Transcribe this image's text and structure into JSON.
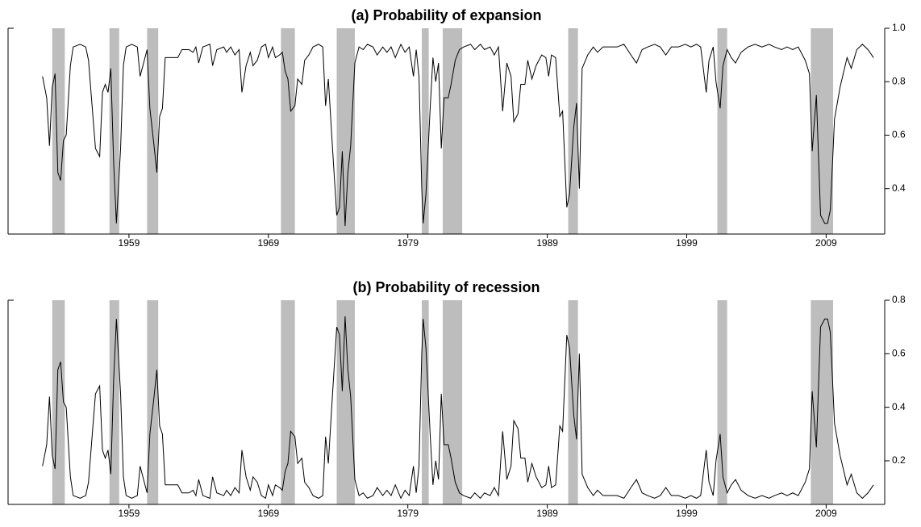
{
  "chart_data": [
    {
      "type": "line",
      "title": "(a) Probability of expansion",
      "xlim": [
        1950.33,
        2013.2
      ],
      "xticks": [
        1959,
        1969,
        1979,
        1989,
        1999,
        2009
      ],
      "ylim": [
        0.23,
        1.0
      ],
      "yticks": [
        0.4,
        0.6,
        0.8,
        {
          "value": 1.0,
          "label": "1.0"
        }
      ],
      "shaded_spans": [
        [
          1953.5,
          1954.4
        ],
        [
          1957.6,
          1958.3
        ],
        [
          1960.3,
          1961.1
        ],
        [
          1969.9,
          1970.9
        ],
        [
          1973.9,
          1975.2
        ],
        [
          1980.0,
          1980.5
        ],
        [
          1981.5,
          1982.9
        ],
        [
          1990.5,
          1991.2
        ],
        [
          2001.2,
          2001.9
        ],
        [
          2007.9,
          2009.5
        ]
      ],
      "shade_color": "#bdbdbd",
      "x": [
        1952.8,
        1953.1,
        1953.3,
        1953.5,
        1953.7,
        1953.9,
        1954.1,
        1954.3,
        1954.5,
        1954.8,
        1955.0,
        1955.5,
        1955.9,
        1956.1,
        1956.4,
        1956.6,
        1956.9,
        1957.1,
        1957.3,
        1957.5,
        1957.7,
        1957.9,
        1958.1,
        1958.4,
        1958.6,
        1958.8,
        1959.2,
        1959.6,
        1959.8,
        1960.0,
        1960.3,
        1960.5,
        1960.8,
        1961.0,
        1961.2,
        1961.4,
        1961.6,
        1962.5,
        1962.8,
        1963.3,
        1963.6,
        1963.8,
        1964.0,
        1964.3,
        1964.8,
        1965.0,
        1965.3,
        1965.8,
        1966.0,
        1966.3,
        1966.6,
        1966.9,
        1967.1,
        1967.4,
        1967.7,
        1967.9,
        1968.2,
        1968.5,
        1968.8,
        1969.0,
        1969.3,
        1969.5,
        1969.8,
        1970.0,
        1970.2,
        1970.4,
        1970.6,
        1970.9,
        1971.1,
        1971.4,
        1971.6,
        1971.9,
        1972.2,
        1972.6,
        1972.9,
        1973.1,
        1973.3,
        1973.6,
        1973.9,
        1974.1,
        1974.3,
        1974.5,
        1974.7,
        1974.9,
        1975.2,
        1975.5,
        1975.8,
        1976.1,
        1976.5,
        1976.8,
        1977.2,
        1977.5,
        1977.8,
        1978.1,
        1978.5,
        1978.8,
        1979.1,
        1979.4,
        1979.6,
        1979.8,
        1980.0,
        1980.1,
        1980.3,
        1980.6,
        1980.8,
        1981.0,
        1981.2,
        1981.4,
        1981.6,
        1981.9,
        1982.1,
        1982.4,
        1982.7,
        1983.0,
        1983.5,
        1983.8,
        1984.2,
        1984.5,
        1984.9,
        1985.2,
        1985.5,
        1985.8,
        1986.1,
        1986.4,
        1986.6,
        1986.9,
        1987.1,
        1987.4,
        1987.6,
        1987.9,
        1988.2,
        1988.6,
        1988.9,
        1989.1,
        1989.3,
        1989.6,
        1989.9,
        1990.1,
        1990.4,
        1990.6,
        1990.9,
        1991.1,
        1991.3,
        1991.5,
        1991.9,
        1992.3,
        1992.6,
        1993.0,
        1993.5,
        1994.0,
        1994.5,
        1995.0,
        1995.4,
        1995.8,
        1996.2,
        1996.7,
        1997.1,
        1997.5,
        1997.9,
        1998.4,
        1998.9,
        1999.3,
        1999.7,
        2000.0,
        2000.4,
        2000.6,
        2000.9,
        2001.1,
        2001.4,
        2001.6,
        2001.9,
        2002.2,
        2002.5,
        2002.9,
        2003.4,
        2003.9,
        2004.4,
        2004.9,
        2005.3,
        2005.8,
        2006.2,
        2006.6,
        2007.0,
        2007.5,
        2007.8,
        2008.0,
        2008.3,
        2008.6,
        2008.9,
        2009.1,
        2009.3,
        2009.6,
        2010.0,
        2010.5,
        2010.8,
        2011.2,
        2011.6,
        2012.0,
        2012.4
      ],
      "series": [
        {
          "color": "#000000",
          "values": [
            0.82,
            0.74,
            0.56,
            0.78,
            0.83,
            0.46,
            0.43,
            0.58,
            0.6,
            0.86,
            0.93,
            0.94,
            0.93,
            0.88,
            0.68,
            0.55,
            0.52,
            0.76,
            0.79,
            0.76,
            0.85,
            0.5,
            0.27,
            0.55,
            0.86,
            0.93,
            0.94,
            0.93,
            0.82,
            0.86,
            0.92,
            0.7,
            0.56,
            0.46,
            0.67,
            0.7,
            0.89,
            0.89,
            0.92,
            0.92,
            0.91,
            0.93,
            0.87,
            0.93,
            0.94,
            0.86,
            0.92,
            0.93,
            0.91,
            0.93,
            0.9,
            0.92,
            0.76,
            0.86,
            0.91,
            0.86,
            0.88,
            0.93,
            0.94,
            0.89,
            0.93,
            0.89,
            0.9,
            0.91,
            0.84,
            0.81,
            0.69,
            0.71,
            0.81,
            0.79,
            0.88,
            0.9,
            0.93,
            0.94,
            0.93,
            0.71,
            0.81,
            0.55,
            0.3,
            0.33,
            0.54,
            0.26,
            0.46,
            0.56,
            0.87,
            0.93,
            0.92,
            0.94,
            0.93,
            0.9,
            0.93,
            0.91,
            0.93,
            0.89,
            0.94,
            0.91,
            0.93,
            0.82,
            0.92,
            0.82,
            0.4,
            0.27,
            0.38,
            0.7,
            0.89,
            0.8,
            0.87,
            0.55,
            0.74,
            0.74,
            0.79,
            0.88,
            0.92,
            0.93,
            0.94,
            0.92,
            0.94,
            0.92,
            0.93,
            0.9,
            0.93,
            0.69,
            0.87,
            0.82,
            0.65,
            0.68,
            0.79,
            0.79,
            0.88,
            0.81,
            0.86,
            0.9,
            0.89,
            0.82,
            0.9,
            0.89,
            0.67,
            0.69,
            0.33,
            0.38,
            0.63,
            0.72,
            0.4,
            0.85,
            0.9,
            0.93,
            0.91,
            0.93,
            0.93,
            0.93,
            0.94,
            0.9,
            0.87,
            0.92,
            0.93,
            0.94,
            0.93,
            0.9,
            0.93,
            0.93,
            0.94,
            0.93,
            0.94,
            0.93,
            0.76,
            0.88,
            0.93,
            0.8,
            0.7,
            0.86,
            0.92,
            0.89,
            0.87,
            0.91,
            0.93,
            0.94,
            0.93,
            0.94,
            0.93,
            0.92,
            0.93,
            0.92,
            0.93,
            0.88,
            0.83,
            0.54,
            0.75,
            0.3,
            0.27,
            0.27,
            0.32,
            0.66,
            0.78,
            0.89,
            0.85,
            0.92,
            0.94,
            0.92,
            0.89
          ]
        }
      ]
    },
    {
      "type": "line",
      "title": "(b) Probability of recession",
      "xlim": [
        1950.33,
        2013.2
      ],
      "xticks": [
        1959,
        1969,
        1979,
        1989,
        1999,
        2009
      ],
      "ylim": [
        0.037,
        0.8
      ],
      "yticks": [
        0.2,
        0.4,
        0.6,
        0.8
      ],
      "shaded_spans": [
        [
          1953.5,
          1954.4
        ],
        [
          1957.6,
          1958.3
        ],
        [
          1960.3,
          1961.1
        ],
        [
          1969.9,
          1970.9
        ],
        [
          1973.9,
          1975.2
        ],
        [
          1980.0,
          1980.5
        ],
        [
          1981.5,
          1982.9
        ],
        [
          1990.5,
          1991.2
        ],
        [
          2001.2,
          2001.9
        ],
        [
          2007.9,
          2009.5
        ]
      ],
      "shade_color": "#bdbdbd",
      "x": [
        1952.8,
        1953.1,
        1953.3,
        1953.5,
        1953.7,
        1953.9,
        1954.1,
        1954.3,
        1954.5,
        1954.8,
        1955.0,
        1955.5,
        1955.9,
        1956.1,
        1956.4,
        1956.6,
        1956.9,
        1957.1,
        1957.3,
        1957.5,
        1957.7,
        1957.9,
        1958.1,
        1958.4,
        1958.6,
        1958.8,
        1959.2,
        1959.6,
        1959.8,
        1960.0,
        1960.3,
        1960.5,
        1960.8,
        1961.0,
        1961.2,
        1961.4,
        1961.6,
        1962.5,
        1962.8,
        1963.3,
        1963.6,
        1963.8,
        1964.0,
        1964.3,
        1964.8,
        1965.0,
        1965.3,
        1965.8,
        1966.0,
        1966.3,
        1966.6,
        1966.9,
        1967.1,
        1967.4,
        1967.7,
        1967.9,
        1968.2,
        1968.5,
        1968.8,
        1969.0,
        1969.3,
        1969.5,
        1969.8,
        1970.0,
        1970.2,
        1970.4,
        1970.6,
        1970.9,
        1971.1,
        1971.4,
        1971.6,
        1971.9,
        1972.2,
        1972.6,
        1972.9,
        1973.1,
        1973.3,
        1973.6,
        1973.9,
        1974.1,
        1974.3,
        1974.5,
        1974.7,
        1974.9,
        1975.2,
        1975.5,
        1975.8,
        1976.1,
        1976.5,
        1976.8,
        1977.2,
        1977.5,
        1977.8,
        1978.1,
        1978.5,
        1978.8,
        1979.1,
        1979.4,
        1979.6,
        1979.8,
        1980.0,
        1980.1,
        1980.3,
        1980.6,
        1980.8,
        1981.0,
        1981.2,
        1981.4,
        1981.6,
        1981.9,
        1982.1,
        1982.4,
        1982.7,
        1983.0,
        1983.5,
        1983.8,
        1984.2,
        1984.5,
        1984.9,
        1985.2,
        1985.5,
        1985.8,
        1986.1,
        1986.4,
        1986.6,
        1986.9,
        1987.1,
        1987.4,
        1987.6,
        1987.9,
        1988.2,
        1988.6,
        1988.9,
        1989.1,
        1989.3,
        1989.6,
        1989.9,
        1990.1,
        1990.4,
        1990.6,
        1990.9,
        1991.1,
        1991.3,
        1991.5,
        1991.9,
        1992.3,
        1992.6,
        1993.0,
        1993.5,
        1994.0,
        1994.5,
        1995.0,
        1995.4,
        1995.8,
        1996.2,
        1996.7,
        1997.1,
        1997.5,
        1997.9,
        1998.4,
        1998.9,
        1999.3,
        1999.7,
        2000.0,
        2000.4,
        2000.6,
        2000.9,
        2001.1,
        2001.4,
        2001.6,
        2001.9,
        2002.2,
        2002.5,
        2002.9,
        2003.4,
        2003.9,
        2004.4,
        2004.9,
        2005.3,
        2005.8,
        2006.2,
        2006.6,
        2007.0,
        2007.5,
        2007.8,
        2008.0,
        2008.3,
        2008.6,
        2008.9,
        2009.1,
        2009.3,
        2009.6,
        2010.0,
        2010.5,
        2010.8,
        2011.2,
        2011.6,
        2012.0,
        2012.4
      ],
      "series": [
        {
          "color": "#000000",
          "values": [
            0.18,
            0.26,
            0.44,
            0.22,
            0.17,
            0.54,
            0.57,
            0.42,
            0.4,
            0.14,
            0.07,
            0.06,
            0.07,
            0.12,
            0.32,
            0.45,
            0.48,
            0.24,
            0.21,
            0.24,
            0.15,
            0.5,
            0.73,
            0.45,
            0.14,
            0.07,
            0.06,
            0.07,
            0.18,
            0.14,
            0.08,
            0.3,
            0.44,
            0.54,
            0.33,
            0.3,
            0.11,
            0.11,
            0.08,
            0.08,
            0.09,
            0.07,
            0.13,
            0.07,
            0.06,
            0.14,
            0.08,
            0.07,
            0.09,
            0.07,
            0.1,
            0.08,
            0.24,
            0.14,
            0.09,
            0.14,
            0.12,
            0.07,
            0.06,
            0.11,
            0.07,
            0.11,
            0.1,
            0.09,
            0.16,
            0.19,
            0.31,
            0.29,
            0.19,
            0.21,
            0.12,
            0.1,
            0.07,
            0.06,
            0.07,
            0.29,
            0.19,
            0.45,
            0.7,
            0.67,
            0.46,
            0.74,
            0.54,
            0.44,
            0.13,
            0.07,
            0.08,
            0.06,
            0.07,
            0.1,
            0.07,
            0.09,
            0.07,
            0.11,
            0.06,
            0.09,
            0.07,
            0.18,
            0.08,
            0.18,
            0.6,
            0.73,
            0.62,
            0.3,
            0.11,
            0.2,
            0.13,
            0.45,
            0.26,
            0.26,
            0.21,
            0.12,
            0.08,
            0.07,
            0.06,
            0.08,
            0.06,
            0.08,
            0.07,
            0.1,
            0.07,
            0.31,
            0.13,
            0.18,
            0.35,
            0.32,
            0.21,
            0.21,
            0.12,
            0.19,
            0.14,
            0.1,
            0.11,
            0.18,
            0.1,
            0.11,
            0.33,
            0.31,
            0.67,
            0.62,
            0.37,
            0.28,
            0.6,
            0.15,
            0.1,
            0.07,
            0.09,
            0.07,
            0.07,
            0.07,
            0.06,
            0.1,
            0.13,
            0.08,
            0.07,
            0.06,
            0.07,
            0.1,
            0.07,
            0.07,
            0.06,
            0.07,
            0.06,
            0.07,
            0.24,
            0.12,
            0.07,
            0.2,
            0.3,
            0.14,
            0.08,
            0.11,
            0.13,
            0.09,
            0.07,
            0.06,
            0.07,
            0.06,
            0.07,
            0.08,
            0.07,
            0.08,
            0.07,
            0.12,
            0.17,
            0.46,
            0.25,
            0.7,
            0.73,
            0.73,
            0.68,
            0.34,
            0.22,
            0.11,
            0.15,
            0.08,
            0.06,
            0.08,
            0.11
          ]
        }
      ]
    }
  ]
}
